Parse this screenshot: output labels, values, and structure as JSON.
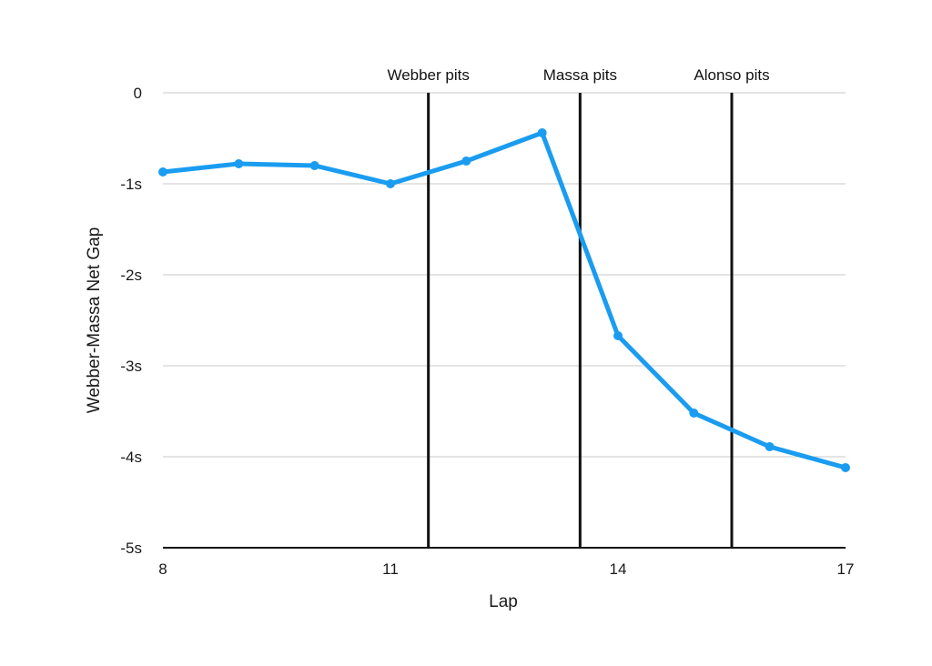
{
  "chart_data": {
    "type": "line",
    "title": "",
    "xlabel": "Lap",
    "ylabel": "Webber-Massa Net Gap",
    "xlim": [
      8,
      17
    ],
    "ylim": [
      -5,
      0
    ],
    "x_ticks": [
      8,
      11,
      14,
      17
    ],
    "x_tick_labels": [
      "8",
      "11",
      "14",
      "17"
    ],
    "y_ticks": [
      0,
      -1,
      -2,
      -3,
      -4,
      -5
    ],
    "y_tick_labels": [
      "0",
      "-1s",
      "-2s",
      "-3s",
      "-4s",
      "-5s"
    ],
    "grid": "horizontal",
    "legend": "none",
    "series": [
      {
        "color": "#1a9cf0",
        "x": [
          8,
          9,
          10,
          11,
          12,
          13,
          14,
          15,
          16,
          17
        ],
        "y": [
          -0.87,
          -0.78,
          -0.8,
          -1.0,
          -0.75,
          -0.44,
          -2.67,
          -3.52,
          -3.89,
          -4.12
        ]
      }
    ],
    "annotations": [
      {
        "type": "vline",
        "x": 11.5,
        "label": "Webber pits"
      },
      {
        "type": "vline",
        "x": 13.5,
        "label": "Massa pits"
      },
      {
        "type": "vline",
        "x": 15.5,
        "label": "Alonso pits"
      }
    ]
  }
}
